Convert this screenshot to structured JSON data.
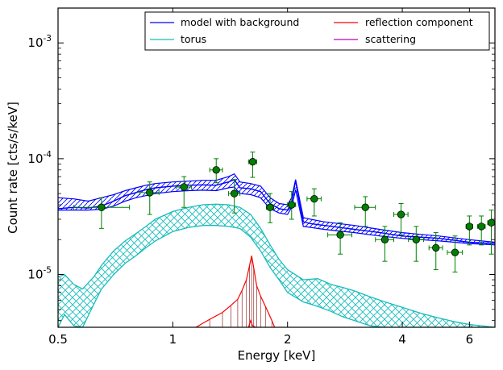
{
  "chart_data": {
    "type": "line",
    "title": "",
    "xlabel": "Energy [keV]",
    "ylabel": "Count rate [cts/s/keV]",
    "xscale": "log",
    "yscale": "log",
    "xlim": [
      0.5,
      7.0
    ],
    "ylim": [
      3.5e-06,
      0.002
    ],
    "x_ticks": [
      0.5,
      1,
      2,
      4,
      6
    ],
    "x_tick_labels": [
      "0.5",
      "1",
      "2",
      "4",
      "6"
    ],
    "y_ticks": [
      1e-05,
      0.0001,
      0.001
    ],
    "y_tick_labels": [
      {
        "base": "10",
        "exp": "-5"
      },
      {
        "base": "10",
        "exp": "-4"
      },
      {
        "base": "10",
        "exp": "-3"
      }
    ],
    "grid": false,
    "legend_position": "top-right",
    "legend": [
      {
        "name": "model with background",
        "color": "#0000ff"
      },
      {
        "name": "reflection component",
        "color": "#ff0000"
      },
      {
        "name": "torus",
        "color": "#17bcbc"
      },
      {
        "name": "scattering",
        "color": "#bf00bf"
      }
    ],
    "model_band": {
      "color": "#0000ff",
      "x": [
        0.5,
        0.55,
        0.6,
        0.65,
        0.7,
        0.75,
        0.8,
        0.85,
        0.9,
        1.0,
        1.1,
        1.2,
        1.3,
        1.4,
        1.45,
        1.5,
        1.6,
        1.7,
        1.8,
        1.9,
        2.0,
        2.05,
        2.1,
        2.15,
        2.2,
        2.3,
        2.5,
        3.0,
        3.5,
        4.0,
        5.0,
        6.0,
        7.0
      ],
      "lower": [
        3.6e-05,
        3.6e-05,
        3.6e-05,
        3.65e-05,
        3.9e-05,
        4.3e-05,
        4.6e-05,
        4.8e-05,
        5e-05,
        5.2e-05,
        5.3e-05,
        5.35e-05,
        5.3e-05,
        5.6e-05,
        5.7e-05,
        5e-05,
        4.9e-05,
        4.6e-05,
        3.7e-05,
        3.4e-05,
        3.3e-05,
        3.8e-05,
        5.4e-05,
        3.7e-05,
        2.6e-05,
        2.55e-05,
        2.45e-05,
        2.3e-05,
        2.15e-05,
        2.05e-05,
        1.95e-05,
        1.85e-05,
        1.8e-05
      ],
      "upper": [
        4.6e-05,
        4.5e-05,
        4.3e-05,
        4.6e-05,
        4.9e-05,
        5.3e-05,
        5.6e-05,
        5.9e-05,
        6.1e-05,
        6.3e-05,
        6.4e-05,
        6.5e-05,
        6.5e-05,
        7e-05,
        7.4e-05,
        6.3e-05,
        6.1e-05,
        5.8e-05,
        4.6e-05,
        4.1e-05,
        4e-05,
        4.6e-05,
        6.6e-05,
        4.5e-05,
        3.1e-05,
        3e-05,
        2.85e-05,
        2.65e-05,
        2.45e-05,
        2.3e-05,
        2.15e-05,
        2e-05,
        1.9e-05
      ],
      "best": [
        3.7e-05,
        3.8e-05,
        3.75e-05,
        3.9e-05,
        4.3e-05,
        4.8e-05,
        5.1e-05,
        5.4e-05,
        5.6e-05,
        5.8e-05,
        5.9e-05,
        5.95e-05,
        5.9e-05,
        6.3e-05,
        6.6e-05,
        5.6e-05,
        5.5e-05,
        5.2e-05,
        4.1e-05,
        3.7e-05,
        3.6e-05,
        4.2e-05,
        6.5e-05,
        4.1e-05,
        2.85e-05,
        2.75e-05,
        2.65e-05,
        2.45e-05,
        2.3e-05,
        2.15e-05,
        2.05e-05,
        1.9e-05,
        1.85e-05
      ]
    },
    "torus_band": {
      "color": "#17bcbc",
      "x": [
        0.5,
        0.52,
        0.55,
        0.58,
        0.62,
        0.65,
        0.7,
        0.75,
        0.8,
        0.85,
        0.9,
        1.0,
        1.1,
        1.2,
        1.3,
        1.4,
        1.5,
        1.6,
        1.7,
        1.8,
        1.9,
        2.0,
        2.2,
        2.4,
        2.6,
        2.8,
        3.0,
        3.3,
        3.6,
        4.0,
        4.5,
        5.0,
        5.5,
        6.0,
        7.0
      ],
      "lower": [
        3.5e-06,
        4.5e-06,
        3.6e-06,
        3.5e-06,
        5.5e-06,
        7.5e-06,
        1e-05,
        1.25e-05,
        1.45e-05,
        1.7e-05,
        1.95e-05,
        2.35e-05,
        2.55e-05,
        2.65e-05,
        2.65e-05,
        2.6e-05,
        2.5e-05,
        2.1e-05,
        1.6e-05,
        1.15e-05,
        9e-06,
        7e-06,
        5.8e-06,
        5.3e-06,
        4.8e-06,
        4.3e-06,
        4e-06,
        3.6e-06,
        3.5e-06,
        3.5e-06,
        3.5e-06,
        3.5e-06,
        3.5e-06,
        3.5e-06,
        3.5e-06
      ],
      "upper": [
        9.5e-06,
        1e-05,
        8.2e-06,
        7.5e-06,
        9.5e-06,
        1.2e-05,
        1.6e-05,
        1.95e-05,
        2.25e-05,
        2.6e-05,
        3e-05,
        3.5e-05,
        3.8e-05,
        4e-05,
        4.05e-05,
        4e-05,
        3.8e-05,
        3.3e-05,
        2.5e-05,
        1.8e-05,
        1.35e-05,
        1.1e-05,
        9e-06,
        9.2e-06,
        8.2e-06,
        7.7e-06,
        7.2e-06,
        6.4e-06,
        5.8e-06,
        5.2e-06,
        4.6e-06,
        4.2e-06,
        3.9e-06,
        3.7e-06,
        3.5e-06
      ]
    },
    "reflection_component": {
      "color": "#ff0000",
      "x": [
        1.15,
        1.25,
        1.35,
        1.42,
        1.48,
        1.52,
        1.56,
        1.59,
        1.61,
        1.63,
        1.66,
        1.7,
        1.75,
        1.82,
        1.85
      ],
      "y": [
        3.5e-06,
        4.1e-06,
        4.7e-06,
        5.4e-06,
        6.1e-06,
        7.3e-06,
        9e-06,
        1.2e-05,
        1.45e-05,
        1.15e-05,
        8e-06,
        6.5e-06,
        5.3e-06,
        4e-06,
        3.5e-06
      ],
      "lower_x": [
        1.58,
        1.6,
        1.62,
        1.65
      ],
      "lower_y": [
        3.5e-06,
        4e-06,
        3.6e-06,
        3.5e-06
      ]
    },
    "scattering": {
      "color": "#bf00bf",
      "x": [],
      "y": []
    },
    "data_points": {
      "color": "#008000",
      "points": [
        {
          "x": 0.65,
          "y": 3.8e-05,
          "xerr": [
            0.1,
            0.12
          ],
          "yerr": [
            1.3e-05,
            8e-06
          ]
        },
        {
          "x": 0.87,
          "y": 5.1e-05,
          "xerr": [
            0.05,
            0.05
          ],
          "yerr": [
            1.8e-05,
            1.2e-05
          ]
        },
        {
          "x": 1.07,
          "y": 5.7e-05,
          "xerr": [
            0.05,
            0.05
          ],
          "yerr": [
            1.9e-05,
            1.3e-05
          ]
        },
        {
          "x": 1.3,
          "y": 8e-05,
          "xerr": [
            0.05,
            0.05
          ],
          "yerr": [
            1.8e-05,
            2e-05
          ]
        },
        {
          "x": 1.45,
          "y": 5e-05,
          "xerr": [
            0.05,
            0.05
          ],
          "yerr": [
            1.6e-05,
            1.6e-05
          ]
        },
        {
          "x": 1.62,
          "y": 9.4e-05,
          "xerr": [
            0.04,
            0.04
          ],
          "yerr": [
            2.5e-05,
            2e-05
          ]
        },
        {
          "x": 1.8,
          "y": 3.8e-05,
          "xerr": [
            0.04,
            0.04
          ],
          "yerr": [
            1e-05,
            1.2e-05
          ]
        },
        {
          "x": 2.05,
          "y": 4e-05,
          "xerr": [
            0.05,
            0.05
          ],
          "yerr": [
            1e-05,
            1.2e-05
          ]
        },
        {
          "x": 2.35,
          "y": 4.5e-05,
          "xerr": [
            0.1,
            0.1
          ],
          "yerr": [
            1.3e-05,
            1e-05
          ]
        },
        {
          "x": 2.75,
          "y": 2.2e-05,
          "xerr": [
            0.2,
            0.2
          ],
          "yerr": [
            7e-06,
            6e-06
          ]
        },
        {
          "x": 3.2,
          "y": 3.8e-05,
          "xerr": [
            0.2,
            0.2
          ],
          "yerr": [
            1.2e-05,
            9e-06
          ]
        },
        {
          "x": 3.6,
          "y": 2e-05,
          "xerr": [
            0.2,
            0.2
          ],
          "yerr": [
            7e-06,
            6e-06
          ]
        },
        {
          "x": 3.97,
          "y": 3.3e-05,
          "xerr": [
            0.17,
            0.17
          ],
          "yerr": [
            1.1e-05,
            8e-06
          ]
        },
        {
          "x": 4.35,
          "y": 2e-05,
          "xerr": [
            0.2,
            0.2
          ],
          "yerr": [
            7e-06,
            6e-06
          ]
        },
        {
          "x": 4.9,
          "y": 1.7e-05,
          "xerr": [
            0.2,
            0.2
          ],
          "yerr": [
            6e-06,
            6e-06
          ]
        },
        {
          "x": 5.5,
          "y": 1.55e-05,
          "xerr": [
            0.25,
            0.25
          ],
          "yerr": [
            5e-06,
            6e-06
          ]
        },
        {
          "x": 6.0,
          "y": 2.6e-05,
          "xerr": [
            0.12,
            0.12
          ],
          "yerr": [
            8e-06,
            6e-06
          ]
        },
        {
          "x": 6.45,
          "y": 2.6e-05,
          "xerr": [
            0.15,
            0.15
          ],
          "yerr": [
            8e-06,
            6e-06
          ]
        },
        {
          "x": 6.85,
          "y": 2.8e-05,
          "xerr": [
            0.15,
            0.15
          ],
          "yerr": [
            1.3e-05,
            8e-06
          ]
        }
      ]
    }
  }
}
